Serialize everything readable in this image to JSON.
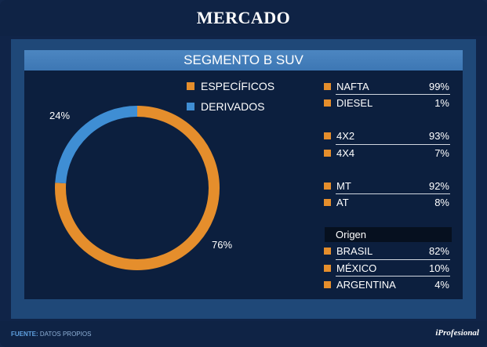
{
  "title": "MERCADO",
  "subtitle": "SEGMENTO B SUV",
  "colors": {
    "especificos": "#e58e2c",
    "derivados": "#3f8ed4"
  },
  "chart_data": {
    "type": "pie",
    "slices": [
      {
        "label": "ESPECÍFICOS",
        "value": 76,
        "display": "76%"
      },
      {
        "label": "DERIVADOS",
        "value": 24,
        "display": "24%"
      }
    ]
  },
  "table": {
    "groups": [
      {
        "rows": [
          {
            "label": "NAFTA",
            "value": "99%"
          },
          {
            "label": "DIESEL",
            "value": "1%"
          }
        ]
      },
      {
        "rows": [
          {
            "label": "4X2",
            "value": "93%"
          },
          {
            "label": "4X4",
            "value": "7%"
          }
        ]
      },
      {
        "rows": [
          {
            "label": "MT",
            "value": "92%"
          },
          {
            "label": "AT",
            "value": "8%"
          }
        ]
      }
    ],
    "origen_title": "Origen",
    "origen_rows": [
      {
        "label": "BRASIL",
        "value": "82%"
      },
      {
        "label": "MÉXICO",
        "value": "10%"
      },
      {
        "label": "ARGENTINA",
        "value": "4%"
      }
    ]
  },
  "footer": {
    "source_label": "FUENTE:",
    "source_text": "DATOS PROPIOS",
    "brand": "iProfesional"
  }
}
